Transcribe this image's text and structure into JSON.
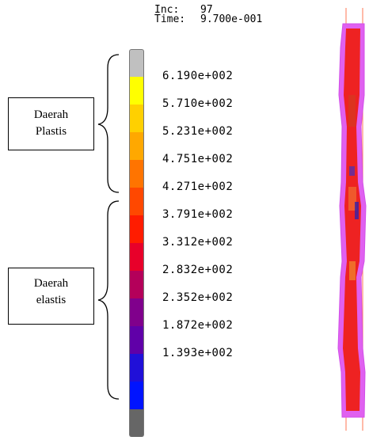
{
  "header": {
    "inc_label": "Inc:",
    "inc_value": "97",
    "time_label": "Time:",
    "time_value": "9.700e-001"
  },
  "legend": {
    "colors": [
      "#c0c0c0",
      "#ffff00",
      "#ffd000",
      "#ffa800",
      "#ff7400",
      "#ff4800",
      "#ff1c00",
      "#e8002a",
      "#b4005a",
      "#80008c",
      "#6000a8",
      "#2010d8",
      "#0014ff",
      "#666666"
    ],
    "tick_labels": [
      "6.190e+002",
      "5.710e+002",
      "5.231e+002",
      "4.751e+002",
      "4.271e+002",
      "3.791e+002",
      "3.312e+002",
      "2.832e+002",
      "2.352e+002",
      "1.872e+002",
      "1.393e+002"
    ]
  },
  "annotations": {
    "plastic_region": [
      "Daerah",
      "Plastis"
    ],
    "elastic_region": [
      "Daerah",
      "elastis"
    ]
  },
  "specimen": {
    "outline_color": "#e060f0",
    "fill_color": "#ee2222",
    "centerline_color": "#ff8c70"
  }
}
